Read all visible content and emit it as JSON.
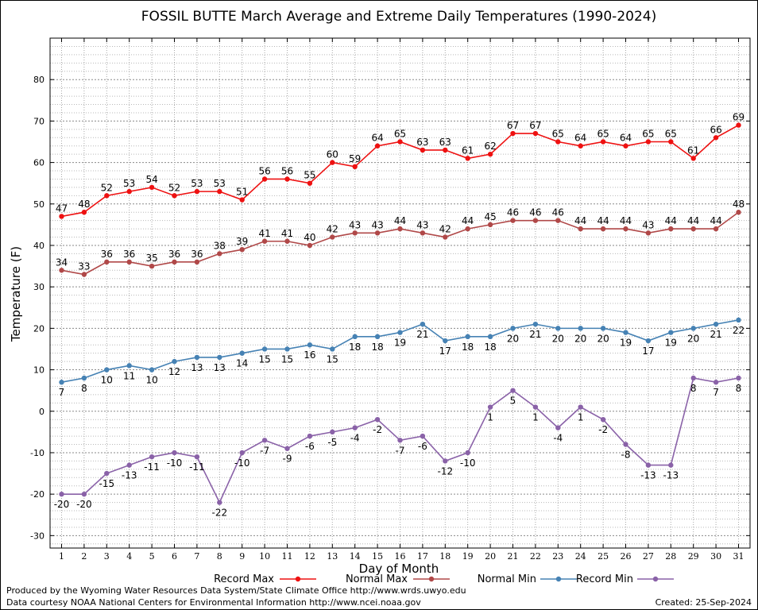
{
  "chart_data": {
    "type": "line",
    "title": "FOSSIL BUTTE March Average and Extreme Daily Temperatures (1990-2024)",
    "xlabel": "Day of Month",
    "ylabel": "Temperature (F)",
    "ylim": [
      -33,
      90
    ],
    "yticks": [
      -30,
      -20,
      -10,
      0,
      10,
      20,
      30,
      40,
      50,
      60,
      70,
      80
    ],
    "x": [
      1,
      2,
      3,
      4,
      5,
      6,
      7,
      8,
      9,
      10,
      11,
      12,
      13,
      14,
      15,
      16,
      17,
      18,
      19,
      20,
      21,
      22,
      23,
      24,
      25,
      26,
      27,
      28,
      29,
      30,
      31
    ],
    "grid": true,
    "legend_position": "bottom",
    "series": [
      {
        "name": "Record Max",
        "color": "#ee1111",
        "values": [
          47,
          48,
          52,
          53,
          54,
          52,
          53,
          53,
          51,
          56,
          56,
          55,
          60,
          59,
          64,
          65,
          63,
          63,
          61,
          62,
          67,
          67,
          65,
          64,
          65,
          64,
          65,
          65,
          61,
          66,
          69
        ]
      },
      {
        "name": "Normal Max",
        "color": "#b04848",
        "values": [
          34,
          33,
          36,
          36,
          35,
          36,
          36,
          38,
          39,
          41,
          41,
          40,
          42,
          43,
          43,
          44,
          43,
          42,
          44,
          45,
          46,
          46,
          46,
          44,
          44,
          44,
          43,
          44,
          44,
          44,
          48
        ]
      },
      {
        "name": "Normal Min",
        "color": "#4682b4",
        "values": [
          7,
          8,
          10,
          11,
          10,
          12,
          13,
          13,
          14,
          15,
          15,
          16,
          15,
          18,
          18,
          19,
          21,
          17,
          18,
          18,
          20,
          21,
          20,
          20,
          20,
          19,
          17,
          19,
          20,
          21,
          22
        ]
      },
      {
        "name": "Record Min",
        "color": "#8a62a8",
        "values": [
          -20,
          -20,
          -15,
          -13,
          -11,
          -10,
          -11,
          -22,
          -10,
          -7,
          -9,
          -6,
          -5,
          -4,
          -2,
          -7,
          -6,
          -12,
          -10,
          1,
          5,
          1,
          -4,
          1,
          -2,
          -8,
          -13,
          -13,
          8,
          7,
          8
        ]
      }
    ]
  },
  "footer": {
    "producer": "Produced by the Wyoming Water Resources Data System/State Climate Office http://www.wrds.uwyo.edu",
    "courtesy": "Data courtesy NOAA National Centers for Environmental Information http://www.ncei.noaa.gov",
    "created": "Created:  25-Sep-2024"
  }
}
